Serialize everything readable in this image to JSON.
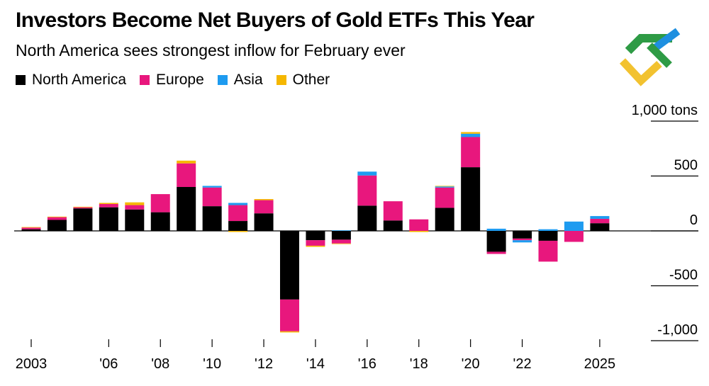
{
  "header": {
    "title": "Investors Become Net Buyers of Gold ETFs This Year",
    "subtitle": "North America sees strongest inflow for February ever"
  },
  "legend": [
    {
      "label": "North America",
      "color": "#000000"
    },
    {
      "label": "Europe",
      "color": "#e8177d"
    },
    {
      "label": "Asia",
      "color": "#1e9bf0"
    },
    {
      "label": "Other",
      "color": "#f5b700"
    }
  ],
  "logo": {
    "name": "brand-logo",
    "colors": [
      "#2e9b45",
      "#1e8fe0",
      "#f2c230"
    ]
  },
  "chart_data": {
    "type": "bar",
    "stacked": true,
    "title": "Investors Become Net Buyers of Gold ETFs This Year",
    "subtitle": "North America sees strongest inflow for February ever",
    "unit_label": "1,000 tons",
    "ylim": [
      -1000,
      1000
    ],
    "yticks": [
      {
        "value": 1000,
        "label": "1,000 tons"
      },
      {
        "value": 500,
        "label": "500"
      },
      {
        "value": 0,
        "label": "0"
      },
      {
        "value": -500,
        "label": "-500"
      },
      {
        "value": -1000,
        "label": "-1,000"
      }
    ],
    "categories": [
      "2003",
      "2004",
      "2005",
      "2006",
      "2007",
      "2008",
      "2009",
      "2010",
      "2011",
      "2012",
      "2013",
      "2014",
      "2015",
      "2016",
      "2017",
      "2018",
      "2019",
      "2020",
      "2021",
      "2022",
      "2023",
      "2024",
      "2025"
    ],
    "xtick_labels": [
      {
        "index": 0,
        "label": "2003"
      },
      {
        "index": 3,
        "label": "'06"
      },
      {
        "index": 5,
        "label": "'08"
      },
      {
        "index": 7,
        "label": "'10"
      },
      {
        "index": 9,
        "label": "'12"
      },
      {
        "index": 11,
        "label": "'14"
      },
      {
        "index": 13,
        "label": "'16"
      },
      {
        "index": 15,
        "label": "'18"
      },
      {
        "index": 17,
        "label": "'20"
      },
      {
        "index": 19,
        "label": "'22"
      },
      {
        "index": 22,
        "label": "2025"
      }
    ],
    "series": [
      {
        "name": "North America",
        "color": "#000000",
        "values": [
          15,
          100,
          205,
          215,
          195,
          170,
          400,
          225,
          90,
          160,
          -625,
          -85,
          -80,
          230,
          95,
          0,
          210,
          580,
          -190,
          -70,
          -90,
          0,
          70
        ]
      },
      {
        "name": "Europe",
        "color": "#e8177d",
        "values": [
          15,
          25,
          10,
          30,
          40,
          165,
          215,
          170,
          145,
          120,
          -290,
          -50,
          -35,
          275,
          175,
          105,
          185,
          275,
          -20,
          -15,
          -190,
          -100,
          40
        ]
      },
      {
        "name": "Asia",
        "color": "#1e9bf0",
        "values": [
          0,
          0,
          0,
          0,
          0,
          0,
          0,
          15,
          20,
          0,
          0,
          0,
          5,
          35,
          0,
          0,
          10,
          30,
          20,
          -20,
          15,
          85,
          25
        ]
      },
      {
        "name": "Other",
        "color": "#f5b700",
        "values": [
          5,
          5,
          5,
          10,
          25,
          0,
          25,
          0,
          -10,
          10,
          -10,
          -10,
          -5,
          0,
          0,
          -10,
          5,
          15,
          0,
          0,
          0,
          0,
          0
        ]
      }
    ]
  }
}
